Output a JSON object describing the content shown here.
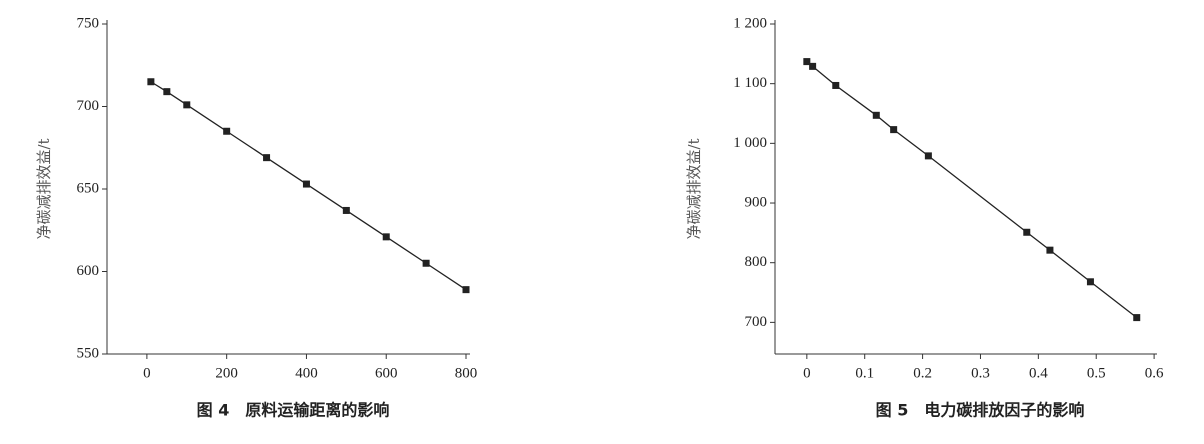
{
  "chart_data": [
    {
      "type": "line",
      "caption": "图 4　原料运输距离的影响",
      "y_label": "净碳减排效益/t",
      "x": [
        10,
        50,
        100,
        200,
        300,
        400,
        500,
        600,
        700,
        800
      ],
      "values": [
        715,
        709,
        701,
        685,
        669,
        653,
        637,
        621,
        605,
        589
      ],
      "color": "#222222",
      "xlim": [
        -100,
        810
      ],
      "xticks": [
        0,
        200,
        400,
        600,
        800
      ],
      "ylim": [
        550,
        750
      ],
      "yticks": [
        550,
        600,
        650,
        700,
        750
      ]
    },
    {
      "type": "line",
      "caption": "图 5　电力碳排放因子的影响",
      "y_label": "净碳减排效益/t",
      "x": [
        0,
        0.01,
        0.05,
        0.12,
        0.15,
        0.21,
        0.38,
        0.42,
        0.49,
        0.57
      ],
      "values": [
        1137,
        1129,
        1097,
        1047,
        1023,
        979,
        851,
        821,
        768,
        708
      ],
      "color": "#222222",
      "xlim": [
        -0.055,
        0.605
      ],
      "xticks": [
        0,
        0.1,
        0.2,
        0.3,
        0.4,
        0.5,
        0.6
      ],
      "ylim": [
        647,
        1200
      ],
      "yticks": [
        700,
        800,
        900,
        {
          "value": 1000,
          "label": "1 000"
        },
        {
          "value": 1100,
          "label": "1 100"
        },
        {
          "value": 1200,
          "label": "1 200"
        }
      ]
    }
  ]
}
